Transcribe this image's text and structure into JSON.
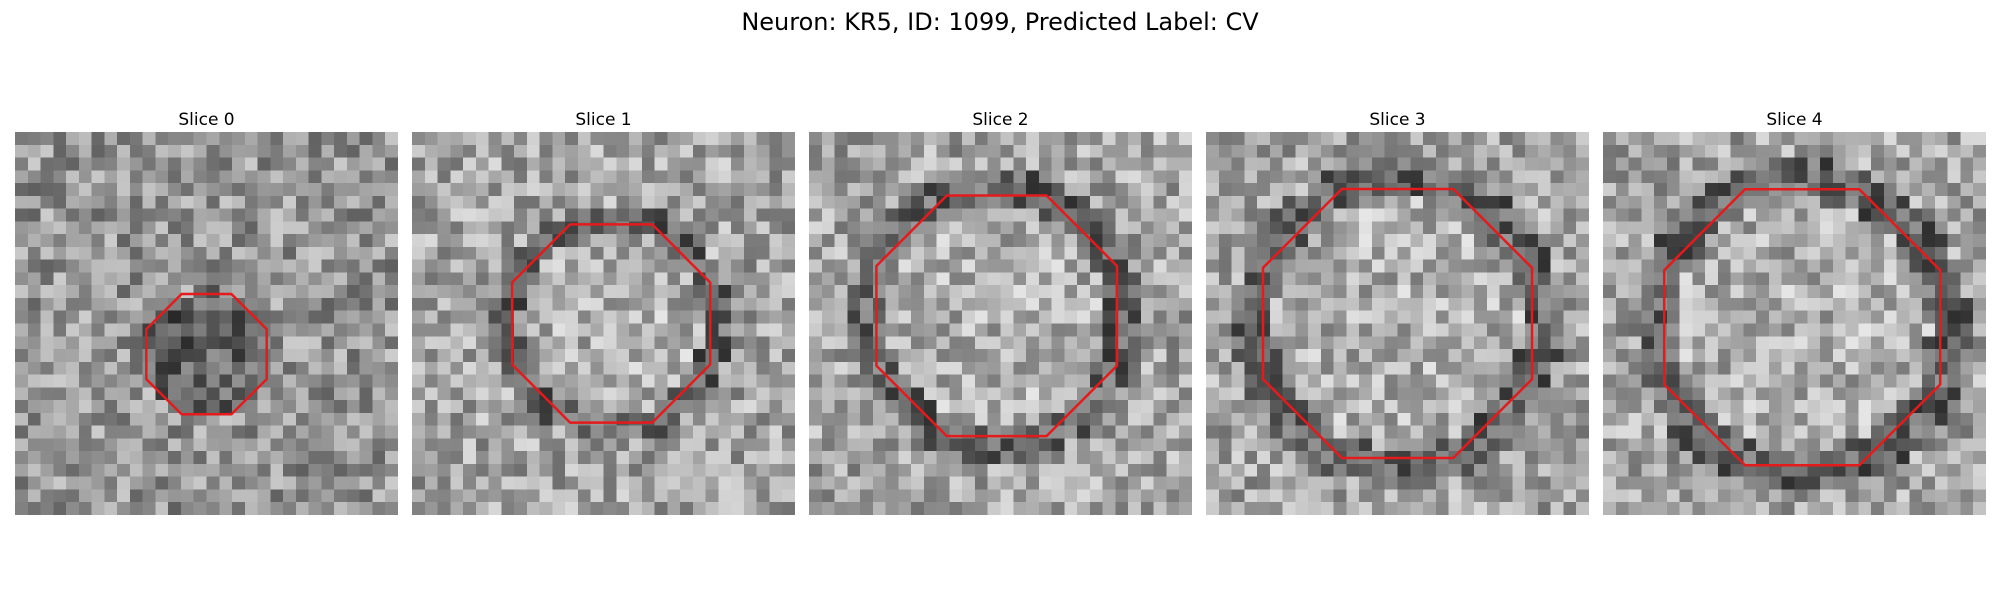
{
  "figure": {
    "title": "Neuron: KR5, ID: 1099, Predicted Label: CV"
  },
  "panels": [
    {
      "title": "Slice 0",
      "contour_color": "#e41a1c",
      "seed": 11,
      "center": [
        0.5,
        0.58
      ],
      "radius": 0.17,
      "dark_ring": false
    },
    {
      "title": "Slice 1",
      "contour_color": "#e41a1c",
      "seed": 23,
      "center": [
        0.52,
        0.5
      ],
      "radius": 0.28,
      "dark_ring": true
    },
    {
      "title": "Slice 2",
      "contour_color": "#e41a1c",
      "seed": 37,
      "center": [
        0.49,
        0.48
      ],
      "radius": 0.34,
      "dark_ring": true
    },
    {
      "title": "Slice 3",
      "contour_color": "#e41a1c",
      "seed": 53,
      "center": [
        0.5,
        0.5
      ],
      "radius": 0.38,
      "dark_ring": true
    },
    {
      "title": "Slice 4",
      "contour_color": "#e41a1c",
      "seed": 71,
      "center": [
        0.52,
        0.51
      ],
      "radius": 0.39,
      "dark_ring": true
    }
  ]
}
